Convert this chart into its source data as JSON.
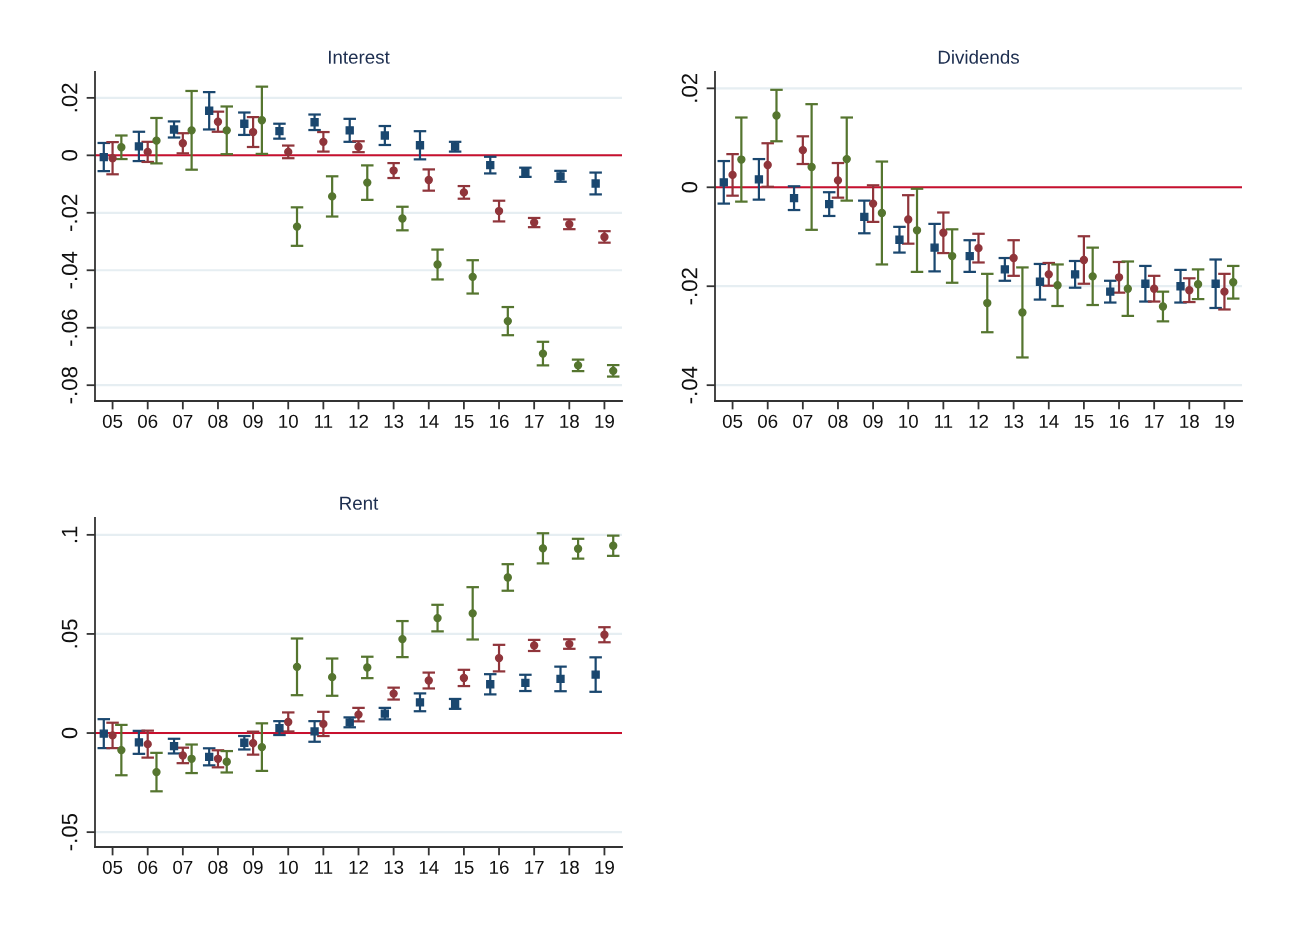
{
  "chart_data": [
    {
      "type": "scatter",
      "title": "Interest",
      "categories": [
        "05",
        "06",
        "07",
        "08",
        "09",
        "10",
        "11",
        "12",
        "13",
        "14",
        "15",
        "16",
        "17",
        "18",
        "19"
      ],
      "series": [
        {
          "color": "#1a476f",
          "marker": "square",
          "values": [
            -0.0006,
            0.0031,
            0.009,
            0.0155,
            0.011,
            0.0084,
            0.0115,
            0.0087,
            0.0069,
            0.0035,
            0.003,
            -0.0034,
            -0.0059,
            -0.0073,
            -0.0098
          ],
          "errors": [
            0.0049,
            0.0051,
            0.0028,
            0.0065,
            0.0039,
            0.0026,
            0.0027,
            0.004,
            0.0033,
            0.0049,
            0.0017,
            0.0029,
            0.0016,
            0.0019,
            0.0038
          ]
        },
        {
          "color": "#90353b",
          "marker": "circle",
          "values": [
            -0.001,
            0.0012,
            0.0042,
            0.0117,
            0.0081,
            0.0012,
            0.0047,
            0.003,
            -0.0053,
            -0.0086,
            -0.0129,
            -0.0194,
            -0.0234,
            -0.024,
            -0.0284
          ],
          "errors": [
            0.0056,
            0.0035,
            0.0035,
            0.0035,
            0.0052,
            0.0022,
            0.0034,
            0.0019,
            0.0026,
            0.0037,
            0.0022,
            0.0036,
            0.0016,
            0.0017,
            0.002
          ]
        },
        {
          "color": "#55752f",
          "marker": "circle",
          "values": [
            0.0028,
            0.0051,
            0.0087,
            0.0087,
            0.0122,
            -0.0248,
            -0.0143,
            -0.0095,
            -0.022,
            -0.038,
            -0.0423,
            -0.0577,
            -0.069,
            -0.0731,
            -0.075
          ],
          "errors": [
            0.0041,
            0.0079,
            0.0137,
            0.0083,
            0.0117,
            0.0067,
            0.007,
            0.006,
            0.0041,
            0.0052,
            0.0058,
            0.0049,
            0.0041,
            0.002,
            0.002
          ]
        }
      ],
      "ylim": [
        -0.0855,
        0.029
      ],
      "yticks": [
        {
          "value": 0.02,
          "label": ".02"
        },
        {
          "value": 0,
          "label": "0"
        },
        {
          "value": -0.02,
          "label": "-.02"
        },
        {
          "value": -0.04,
          "label": "-.04"
        },
        {
          "value": -0.06,
          "label": "-.06"
        },
        {
          "value": -0.08,
          "label": "-.08"
        }
      ],
      "ref_lines": [
        {
          "axis": "y",
          "value": 0,
          "color": "#c8102e"
        }
      ],
      "grid": "y"
    },
    {
      "type": "scatter",
      "title": "Dividends",
      "categories": [
        "05",
        "06",
        "07",
        "08",
        "09",
        "10",
        "11",
        "12",
        "13",
        "14",
        "15",
        "16",
        "17",
        "18",
        "19"
      ],
      "series": [
        {
          "color": "#1a476f",
          "marker": "square",
          "values": [
            0.001,
            0.0016,
            -0.0022,
            -0.0034,
            -0.006,
            -0.0106,
            -0.0122,
            -0.0139,
            -0.0166,
            -0.0191,
            -0.0176,
            -0.0211,
            -0.0195,
            -0.02,
            -0.0195
          ],
          "errors": [
            0.0043,
            0.0041,
            0.0024,
            0.0024,
            0.0033,
            0.0026,
            0.0048,
            0.0032,
            0.0023,
            0.0036,
            0.0027,
            0.0022,
            0.0036,
            0.0033,
            0.0049
          ]
        },
        {
          "color": "#90353b",
          "marker": "circle",
          "values": [
            0.0025,
            0.0045,
            0.0075,
            0.0014,
            -0.0033,
            -0.0065,
            -0.0092,
            -0.0123,
            -0.0143,
            -0.0176,
            -0.0147,
            -0.0182,
            -0.0205,
            -0.0208,
            -0.0211
          ],
          "errors": [
            0.0042,
            0.0044,
            0.0028,
            0.0035,
            0.0037,
            0.0049,
            0.0041,
            0.0029,
            0.0036,
            0.0023,
            0.0048,
            0.0031,
            0.0026,
            0.0024,
            0.0036
          ]
        },
        {
          "color": "#55752f",
          "marker": "circle",
          "values": [
            0.0056,
            0.0145,
            0.0041,
            0.0057,
            -0.0052,
            -0.0087,
            -0.0139,
            -0.0234,
            -0.0253,
            -0.0198,
            -0.018,
            -0.0205,
            -0.0241,
            -0.0196,
            -0.0192
          ],
          "errors": [
            0.0085,
            0.0052,
            0.0127,
            0.0084,
            0.0104,
            0.0084,
            0.0054,
            0.0059,
            0.0091,
            0.0042,
            0.0058,
            0.0055,
            0.003,
            0.003,
            0.0033
          ]
        }
      ],
      "ylim": [
        -0.0432,
        0.0233
      ],
      "yticks": [
        {
          "value": 0.02,
          "label": ".02"
        },
        {
          "value": 0,
          "label": "0"
        },
        {
          "value": -0.02,
          "label": "-.02"
        },
        {
          "value": -0.04,
          "label": "-.04"
        }
      ],
      "ref_lines": [
        {
          "axis": "y",
          "value": 0,
          "color": "#c8102e"
        }
      ],
      "grid": "y"
    },
    {
      "type": "scatter",
      "title": "Rent",
      "categories": [
        "05",
        "06",
        "07",
        "08",
        "09",
        "10",
        "11",
        "12",
        "13",
        "14",
        "15",
        "16",
        "17",
        "18",
        "19"
      ],
      "series": [
        {
          "color": "#1a476f",
          "marker": "square",
          "values": [
            -0.0003,
            -0.0047,
            -0.0066,
            -0.012,
            -0.0049,
            0.0025,
            0.0008,
            0.0054,
            0.0098,
            0.0155,
            0.0147,
            0.0246,
            0.0253,
            0.0273,
            0.0295
          ],
          "errors": [
            0.0073,
            0.0058,
            0.0037,
            0.0043,
            0.0034,
            0.0035,
            0.0052,
            0.0025,
            0.0029,
            0.0045,
            0.0025,
            0.0051,
            0.0041,
            0.0062,
            0.0087
          ]
        },
        {
          "color": "#90353b",
          "marker": "circle",
          "values": [
            -0.0012,
            -0.0056,
            -0.0113,
            -0.013,
            -0.0051,
            0.0056,
            0.0046,
            0.0093,
            0.0199,
            0.0265,
            0.0278,
            0.0378,
            0.0442,
            0.0449,
            0.0496
          ],
          "errors": [
            0.0064,
            0.0068,
            0.0039,
            0.0043,
            0.0058,
            0.0048,
            0.0061,
            0.0034,
            0.003,
            0.004,
            0.0041,
            0.0067,
            0.0028,
            0.0024,
            0.0038
          ]
        },
        {
          "color": "#55752f",
          "marker": "circle",
          "values": [
            -0.0086,
            -0.0197,
            -0.013,
            -0.0145,
            -0.0071,
            0.0334,
            0.0282,
            0.0331,
            0.0474,
            0.058,
            0.0604,
            0.0785,
            0.0932,
            0.093,
            0.0945
          ],
          "errors": [
            0.0127,
            0.0097,
            0.0072,
            0.0054,
            0.012,
            0.0143,
            0.0094,
            0.0054,
            0.0091,
            0.0067,
            0.0132,
            0.0067,
            0.0076,
            0.005,
            0.0051
          ]
        }
      ],
      "ylim": [
        -0.0575,
        0.1085
      ],
      "yticks": [
        {
          "value": 0.1,
          "label": ".1"
        },
        {
          "value": 0.05,
          "label": ".05"
        },
        {
          "value": 0,
          "label": "0"
        },
        {
          "value": -0.05,
          "label": "-.05"
        }
      ],
      "ref_lines": [
        {
          "axis": "y",
          "value": 0,
          "color": "#c8102e"
        }
      ],
      "grid": "y"
    }
  ]
}
